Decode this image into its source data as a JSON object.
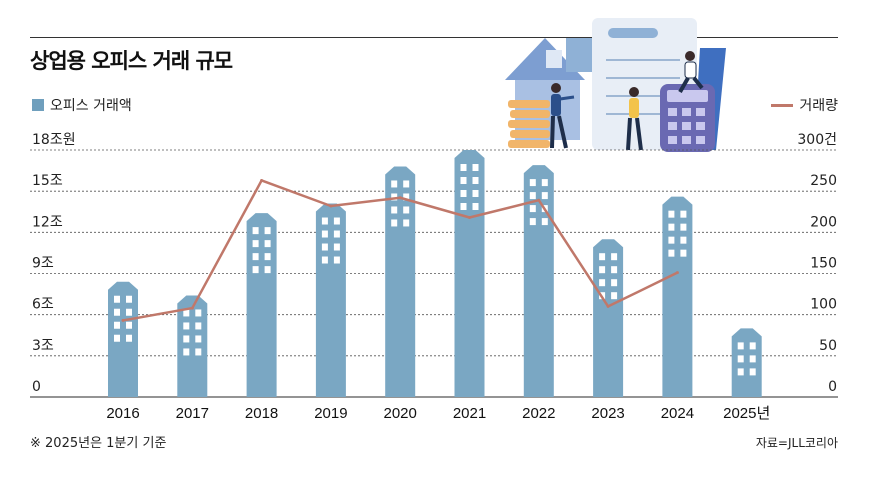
{
  "title": "상업용 오피스 거래 규모",
  "legend": {
    "bars": "오피스 거래액",
    "line": "거래량"
  },
  "footnote": "※ 2025년은 1분기 기준",
  "source": "자료=JLL코리아",
  "colors": {
    "bar": "#7aa7c3",
    "bar_dark": "#5f8fae",
    "window": "#ffffff",
    "line": "#c0786a",
    "grid": "#555555"
  },
  "chart_data": {
    "type": "bar",
    "categories": [
      "2016",
      "2017",
      "2018",
      "2019",
      "2020",
      "2021",
      "2022",
      "2023",
      "2024",
      "2025년"
    ],
    "left_axis": {
      "ticks": [
        "0",
        "3조",
        "6조",
        "9조",
        "12조",
        "15조",
        "18조원"
      ],
      "range": [
        0,
        18
      ]
    },
    "right_axis": {
      "ticks": [
        "0",
        "50",
        "100",
        "150",
        "200",
        "250",
        "300건"
      ],
      "range": [
        0,
        300
      ]
    },
    "series": [
      {
        "name": "오피스 거래액",
        "type": "bar",
        "values": [
          8.4,
          7.4,
          13.4,
          14.1,
          16.8,
          18.0,
          16.9,
          11.5,
          14.6,
          5.0
        ]
      },
      {
        "name": "거래량",
        "type": "line",
        "values": [
          93,
          108,
          263,
          232,
          242,
          218,
          239,
          110,
          151,
          null
        ]
      }
    ],
    "grid": true
  }
}
